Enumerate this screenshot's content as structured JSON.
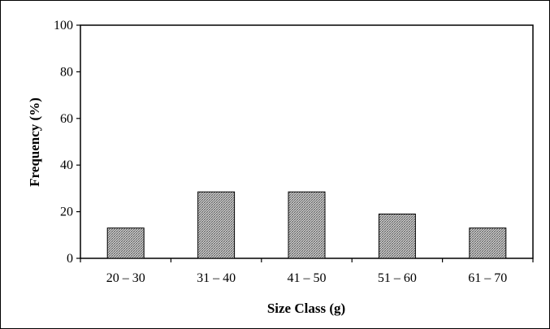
{
  "chart_data": {
    "type": "bar",
    "title": "",
    "xlabel": "Size Class (g)",
    "ylabel": "Frequency (%)",
    "categories": [
      "20 – 30",
      "31 – 40",
      "41 – 50",
      "51 – 60",
      "61 – 70"
    ],
    "values": [
      13,
      28.5,
      28.5,
      19,
      13
    ],
    "ylim": [
      0,
      100
    ],
    "yticks": [
      "0",
      "20",
      "40",
      "60",
      "80",
      "100"
    ],
    "grid": false,
    "bar_fill": "crosshatch-pattern",
    "colors": {
      "bar_pattern": "#555555",
      "axis": "#000000",
      "bar_outline": "#000000"
    }
  }
}
